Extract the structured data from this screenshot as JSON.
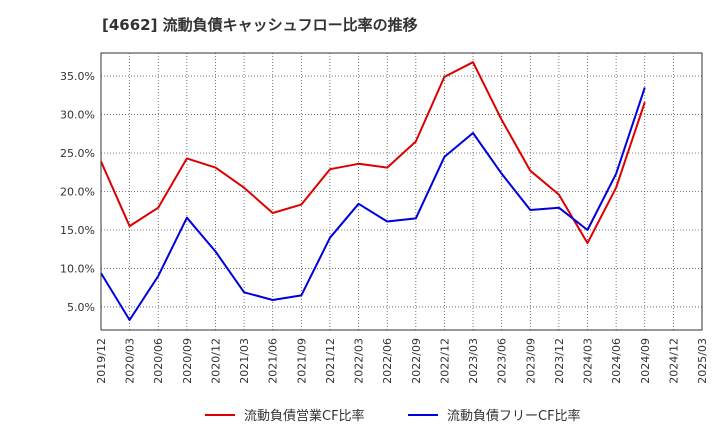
{
  "chart_data": {
    "type": "line",
    "title": "[4662]  流動負債キャッシュフロー比率の推移",
    "x": [
      "2019/12",
      "2020/03",
      "2020/06",
      "2020/09",
      "2020/12",
      "2021/03",
      "2021/06",
      "2021/09",
      "2021/12",
      "2022/03",
      "2022/06",
      "2022/09",
      "2022/12",
      "2023/03",
      "2023/06",
      "2023/09",
      "2023/12",
      "2024/03",
      "2024/06",
      "2024/09",
      "2024/12",
      "2025/03"
    ],
    "yticks": [
      "5.0%",
      "10.0%",
      "15.0%",
      "20.0%",
      "25.0%",
      "30.0%",
      "35.0%"
    ],
    "ytick_values": [
      5,
      10,
      15,
      20,
      25,
      30,
      35
    ],
    "ylim": [
      2.0,
      38.0
    ],
    "grid": true,
    "legend_position": "bottom",
    "series": [
      {
        "name": "流動負債営業CF比率",
        "color": "#dd0000",
        "values": [
          23.9,
          15.5,
          17.9,
          24.3,
          23.1,
          20.5,
          17.2,
          18.3,
          22.9,
          23.6,
          23.1,
          26.5,
          34.9,
          36.8,
          29.3,
          22.7,
          19.6,
          13.3,
          20.5,
          31.6,
          null,
          null
        ]
      },
      {
        "name": "流動負債フリーCF比率",
        "color": "#0000dd",
        "values": [
          9.4,
          3.3,
          9.0,
          16.6,
          12.2,
          6.9,
          5.9,
          6.5,
          14.0,
          18.4,
          16.1,
          16.5,
          24.5,
          27.6,
          22.3,
          17.6,
          17.9,
          15.0,
          22.3,
          33.5,
          null,
          null
        ]
      }
    ]
  }
}
